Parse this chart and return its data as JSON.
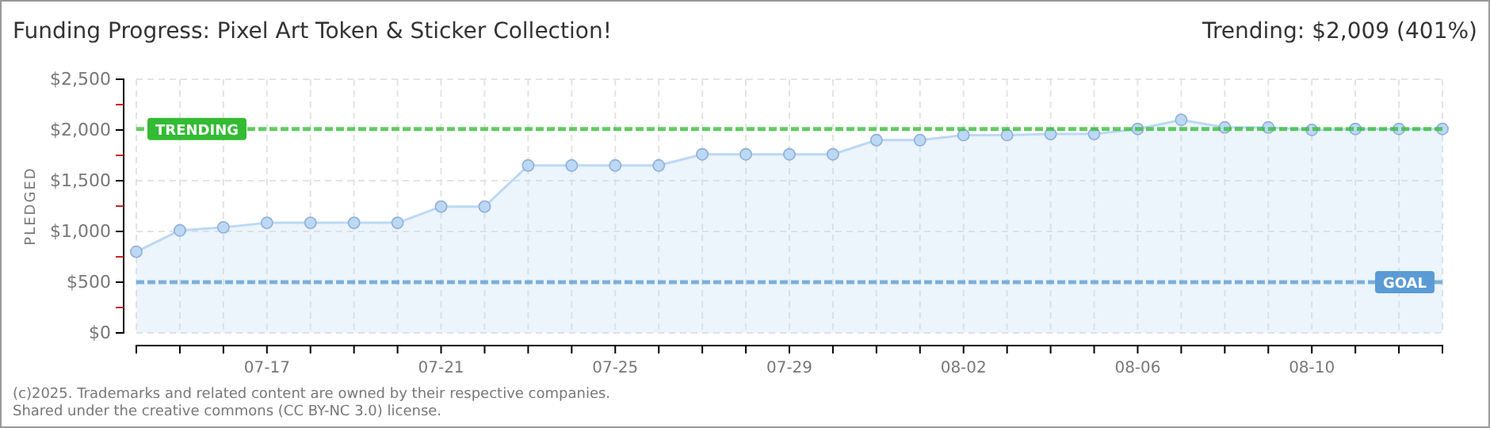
{
  "chart_data": {
    "type": "area",
    "title": "Funding Progress: Pixel Art Token & Sticker Collection!",
    "subtitle": "Trending: $2,009 (401%)",
    "ylabel": "PLEDGED",
    "categories": [
      null,
      null,
      null,
      "07-17",
      null,
      null,
      null,
      "07-21",
      null,
      null,
      null,
      "07-25",
      null,
      null,
      null,
      "07-29",
      null,
      null,
      null,
      "08-02",
      null,
      null,
      null,
      "08-06",
      null,
      null,
      null,
      "08-10",
      null,
      null,
      null
    ],
    "series": [
      {
        "color": "#bcd8f5",
        "values": [
          800,
          1010,
          1040,
          1085,
          1085,
          1085,
          1085,
          1245,
          1245,
          1650,
          1650,
          1650,
          1650,
          1760,
          1760,
          1760,
          1760,
          1900,
          1900,
          1950,
          1950,
          1960,
          1960,
          2010,
          2100,
          2025,
          2025,
          2000,
          2010,
          2010,
          2010
        ]
      }
    ],
    "ylim": [
      0,
      2500
    ],
    "yticks": [
      {
        "value": 0,
        "label": "$0"
      },
      {
        "value": 250,
        "label": null
      },
      {
        "value": 500,
        "label": "$500"
      },
      {
        "value": 750,
        "label": null
      },
      {
        "value": 1000,
        "label": "$1,000"
      },
      {
        "value": 1250,
        "label": null
      },
      {
        "value": 1500,
        "label": "$1,500"
      },
      {
        "value": 1750,
        "label": null
      },
      {
        "value": 2000,
        "label": "$2,000"
      },
      {
        "value": 2250,
        "label": null
      },
      {
        "value": 2500,
        "label": "$2,500"
      }
    ],
    "ref_lines": [
      {
        "axis": "y",
        "value": 2009,
        "label": "TRENDING",
        "color": "#33bb33",
        "line_style": "dashed"
      },
      {
        "axis": "y",
        "value": 500,
        "label": "GOAL",
        "color": "#5b9bd5",
        "line_style": "dashed"
      }
    ],
    "grid": true,
    "marker": "circle",
    "annotations": [
      "(c)2025. Trademarks and related content are owned by their respective companies.",
      "Shared under the creative commons (CC BY-NC 3.0) license."
    ]
  }
}
